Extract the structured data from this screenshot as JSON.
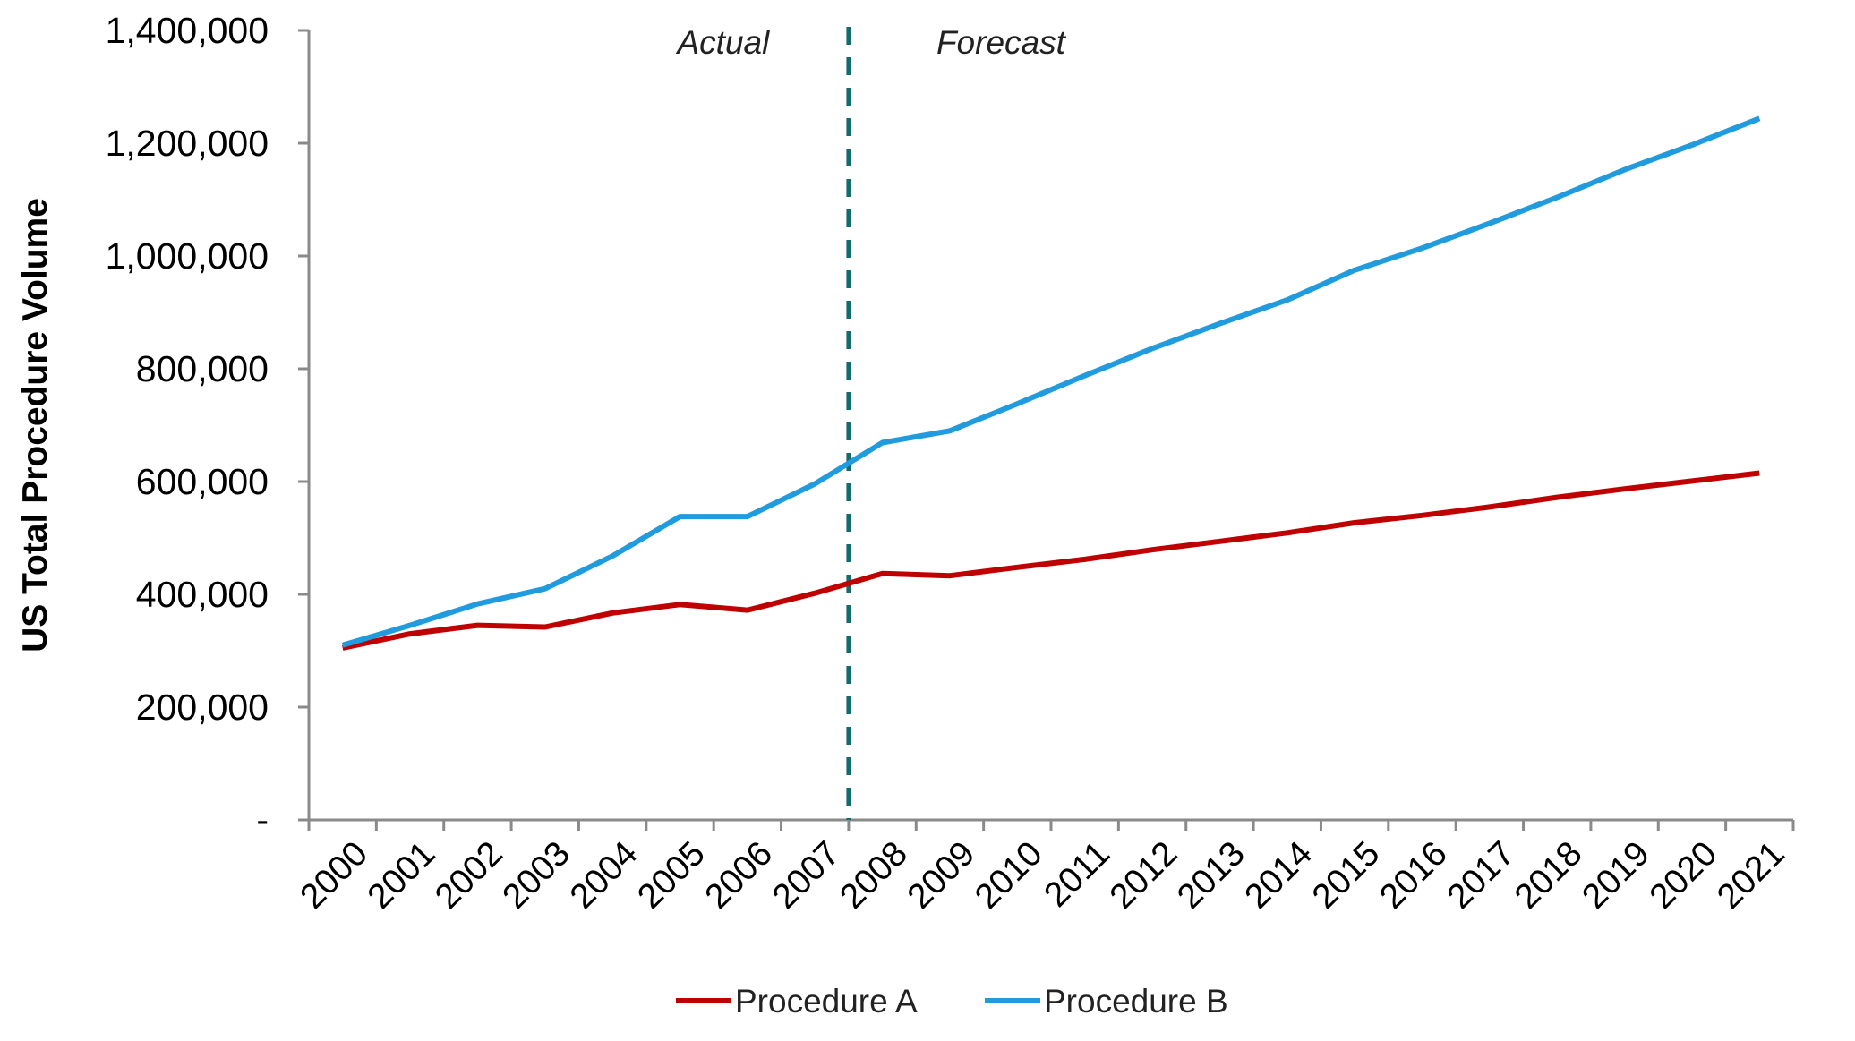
{
  "chart_data": {
    "type": "line",
    "title": "",
    "xlabel": "",
    "ylabel": "US Total Procedure Volume",
    "x": [
      "2000",
      "2001",
      "2002",
      "2003",
      "2004",
      "2005",
      "2006",
      "2007",
      "2008",
      "2009",
      "2010",
      "2011",
      "2012",
      "2013",
      "2014",
      "2015",
      "2016",
      "2017",
      "2018",
      "2019",
      "2020",
      "2021"
    ],
    "ylim": [
      0,
      1400000
    ],
    "yticks": [
      0,
      200000,
      400000,
      600000,
      800000,
      1000000,
      1200000,
      1400000
    ],
    "ytick_labels": [
      "-",
      "200,000",
      "400,000",
      "600,000",
      "800,000",
      "1,000,000",
      "1,200,000",
      "1,400,000"
    ],
    "grid": false,
    "legend_position": "bottom",
    "annotations": {
      "actual": "Actual",
      "forecast": "Forecast",
      "divider_between": [
        "2007",
        "2008"
      ]
    },
    "series": [
      {
        "name": "Procedure A",
        "color": "#c00000",
        "values": [
          305000,
          330000,
          345000,
          342000,
          367000,
          382000,
          372000,
          402000,
          437000,
          433000,
          448000,
          462000,
          479000,
          494000,
          509000,
          527000,
          540000,
          555000,
          572000,
          587000,
          601000,
          615000
        ]
      },
      {
        "name": "Procedure B",
        "color": "#1f9bde",
        "values": [
          310000,
          345000,
          383000,
          410000,
          468000,
          538000,
          538000,
          596000,
          669000,
          690000,
          738000,
          788000,
          836000,
          880000,
          922000,
          975000,
          1014000,
          1058000,
          1104000,
          1153000,
          1197000,
          1244000
        ]
      }
    ]
  }
}
